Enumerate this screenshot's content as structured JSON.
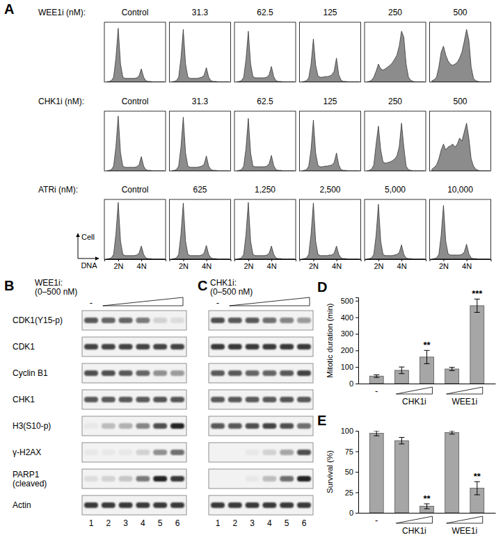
{
  "panel_a": {
    "label": "A",
    "x_label": "DNA",
    "y_label": "Cell",
    "xlim": [
      0.8,
      6.1
    ],
    "ylim": [
      0,
      100
    ],
    "xticks": [
      {
        "value": 2,
        "label": "2N"
      },
      {
        "value": 4,
        "label": "4N"
      }
    ],
    "x": [
      1,
      1.2,
      1.4,
      1.6,
      1.8,
      2,
      2.2,
      2.4,
      2.6,
      2.8,
      3,
      3.2,
      3.4,
      3.6,
      3.8,
      4,
      4.2,
      4.4,
      4.6,
      4.8,
      5,
      5.2,
      5.4,
      5.6,
      5.8,
      6
    ],
    "rows": [
      {
        "title": "WEE1i (nM):",
        "panels": [
          {
            "label": "Control",
            "values": [
              0,
              1,
              2,
              8,
              40,
              90,
              30,
              8,
              6,
              6,
              6,
              6,
              6,
              7,
              10,
              22,
              8,
              2,
              1,
              1,
              0,
              0,
              0,
              0,
              0,
              0
            ]
          },
          {
            "label": "31.3",
            "values": [
              0,
              1,
              2,
              8,
              40,
              88,
              30,
              8,
              6,
              6,
              6,
              6,
              7,
              8,
              11,
              24,
              8,
              2,
              1,
              1,
              0,
              0,
              0,
              0,
              0,
              0
            ]
          },
          {
            "label": "62.5",
            "values": [
              0,
              1,
              2,
              8,
              38,
              85,
              30,
              9,
              7,
              7,
              7,
              7,
              7,
              8,
              12,
              26,
              9,
              2,
              1,
              1,
              0,
              0,
              0,
              0,
              0,
              0
            ]
          },
          {
            "label": "125",
            "values": [
              0,
              1,
              2,
              7,
              30,
              72,
              28,
              10,
              8,
              8,
              9,
              9,
              10,
              12,
              18,
              40,
              12,
              3,
              1,
              1,
              0,
              0,
              0,
              0,
              0,
              0
            ]
          },
          {
            "label": "250",
            "values": [
              0,
              1,
              3,
              8,
              18,
              30,
              22,
              20,
              22,
              25,
              28,
              32,
              38,
              45,
              60,
              85,
              75,
              30,
              8,
              3,
              1,
              0,
              0,
              0,
              0,
              0
            ]
          },
          {
            "label": "500",
            "values": [
              2,
              4,
              8,
              25,
              50,
              60,
              45,
              35,
              30,
              28,
              30,
              33,
              40,
              50,
              68,
              88,
              70,
              25,
              6,
              2,
              1,
              0,
              0,
              0,
              0,
              0
            ]
          }
        ]
      },
      {
        "title": "CHK1i (nM):",
        "panels": [
          {
            "label": "Control",
            "values": [
              0,
              1,
              2,
              8,
              40,
              92,
              30,
              8,
              6,
              6,
              6,
              6,
              6,
              7,
              10,
              24,
              8,
              2,
              1,
              1,
              0,
              0,
              0,
              0,
              0,
              0
            ]
          },
          {
            "label": "31.3",
            "values": [
              0,
              1,
              2,
              8,
              40,
              90,
              30,
              8,
              6,
              6,
              6,
              6,
              7,
              8,
              11,
              25,
              8,
              2,
              1,
              1,
              0,
              0,
              0,
              0,
              0,
              0
            ]
          },
          {
            "label": "62.5",
            "values": [
              0,
              1,
              2,
              8,
              38,
              88,
              30,
              8,
              7,
              7,
              7,
              7,
              7,
              8,
              12,
              26,
              9,
              2,
              1,
              1,
              0,
              0,
              0,
              0,
              0,
              0
            ]
          },
          {
            "label": "125",
            "values": [
              0,
              1,
              2,
              8,
              36,
              85,
              30,
              9,
              7,
              7,
              8,
              8,
              9,
              10,
              14,
              30,
              10,
              2,
              1,
              1,
              0,
              0,
              0,
              0,
              0,
              0
            ]
          },
          {
            "label": "250",
            "values": [
              0,
              1,
              3,
              10,
              45,
              75,
              35,
              15,
              13,
              14,
              15,
              17,
              20,
              25,
              40,
              80,
              40,
              8,
              2,
              1,
              0,
              0,
              0,
              0,
              0,
              0
            ]
          },
          {
            "label": "500",
            "values": [
              3,
              6,
              10,
              20,
              35,
              45,
              35,
              40,
              42,
              45,
              40,
              45,
              55,
              50,
              65,
              80,
              55,
              20,
              8,
              3,
              1,
              0,
              0,
              0,
              0,
              0
            ]
          }
        ]
      },
      {
        "title": "ATRi (nM):",
        "panels": [
          {
            "label": "Control",
            "values": [
              0,
              1,
              2,
              8,
              42,
              95,
              30,
              8,
              6,
              6,
              6,
              6,
              6,
              7,
              10,
              22,
              8,
              2,
              1,
              1,
              0,
              0,
              0,
              0,
              0,
              0
            ]
          },
          {
            "label": "625",
            "values": [
              0,
              1,
              2,
              8,
              42,
              94,
              30,
              8,
              6,
              6,
              6,
              6,
              6,
              7,
              10,
              23,
              8,
              2,
              1,
              1,
              0,
              0,
              0,
              0,
              0,
              0
            ]
          },
          {
            "label": "1,250",
            "values": [
              0,
              1,
              2,
              8,
              42,
              95,
              30,
              8,
              6,
              6,
              6,
              6,
              6,
              7,
              10,
              22,
              8,
              2,
              1,
              1,
              0,
              0,
              0,
              0,
              0,
              0
            ]
          },
          {
            "label": "2,500",
            "values": [
              0,
              1,
              2,
              8,
              42,
              94,
              30,
              8,
              6,
              6,
              6,
              6,
              7,
              7,
              10,
              22,
              8,
              2,
              1,
              1,
              0,
              0,
              0,
              0,
              0,
              0
            ]
          },
          {
            "label": "5,000",
            "values": [
              0,
              1,
              2,
              8,
              40,
              92,
              30,
              8,
              6,
              6,
              6,
              6,
              7,
              8,
              11,
              24,
              8,
              2,
              1,
              1,
              0,
              0,
              0,
              0,
              0,
              0
            ]
          },
          {
            "label": "10,000",
            "values": [
              0,
              1,
              2,
              8,
              40,
              90,
              30,
              9,
              7,
              7,
              7,
              7,
              7,
              8,
              12,
              25,
              9,
              2,
              1,
              1,
              0,
              0,
              0,
              0,
              0,
              0
            ]
          }
        ]
      }
    ]
  },
  "blots": [
    {
      "label": "B",
      "treatment": "WEE1i:",
      "dose": "(0–500 nM)",
      "control_label": "-",
      "lanes": [
        "1",
        "2",
        "3",
        "4",
        "5",
        "6"
      ],
      "rows": [
        {
          "label": [
            "CDK1(Y15-p)"
          ],
          "intensity": [
            70,
            65,
            65,
            55,
            15,
            10
          ]
        },
        {
          "label": [
            "CDK1"
          ],
          "intensity": [
            80,
            80,
            80,
            80,
            80,
            80
          ]
        },
        {
          "label": [
            "Cyclin B1"
          ],
          "intensity": [
            75,
            75,
            70,
            65,
            45,
            40
          ]
        },
        {
          "label": [
            "CHK1"
          ],
          "intensity": [
            70,
            70,
            70,
            70,
            72,
            72
          ]
        },
        {
          "label": [
            "H3(S10-p)"
          ],
          "intensity": [
            5,
            25,
            30,
            50,
            75,
            95
          ]
        },
        {
          "label": [
            "γ-H2AX"
          ],
          "intensity": [
            5,
            5,
            5,
            15,
            45,
            60
          ]
        },
        {
          "label": [
            "PARP1",
            "(cleaved)"
          ],
          "intensity": [
            10,
            15,
            20,
            55,
            95,
            85
          ]
        },
        {
          "label": [
            "Actin"
          ],
          "intensity": [
            85,
            85,
            85,
            85,
            85,
            85
          ]
        }
      ]
    },
    {
      "label": "C",
      "treatment": "CHK1i:",
      "dose": "(0–500 nM)",
      "control_label": "-",
      "lanes": [
        "1",
        "2",
        "3",
        "4",
        "5",
        "6"
      ],
      "rows": [
        {
          "intensity": [
            75,
            70,
            70,
            60,
            50,
            40
          ]
        },
        {
          "intensity": [
            85,
            85,
            85,
            85,
            85,
            85
          ]
        },
        {
          "intensity": [
            70,
            70,
            65,
            65,
            70,
            80
          ]
        },
        {
          "intensity": [
            70,
            70,
            70,
            70,
            72,
            70
          ]
        },
        {
          "intensity": [
            70,
            70,
            75,
            80,
            75,
            60
          ]
        },
        {
          "intensity": [
            0,
            0,
            5,
            15,
            35,
            75
          ]
        },
        {
          "intensity": [
            0,
            0,
            5,
            25,
            60,
            95
          ]
        },
        {
          "intensity": [
            85,
            85,
            85,
            85,
            85,
            85
          ]
        }
      ]
    }
  ],
  "chart_data": [
    {
      "type": "bar",
      "panel": "D",
      "y_label": "Mitotic duration (min)",
      "categories": [
        "-",
        null,
        null,
        null,
        null
      ],
      "x_groups": [
        {
          "label": "CHK1i",
          "members": [
            1,
            2
          ]
        },
        {
          "label": "WEE1i",
          "members": [
            3,
            4
          ]
        }
      ],
      "values": [
        45,
        80,
        160,
        88,
        470
      ],
      "errors": [
        8,
        20,
        40,
        10,
        40
      ],
      "significance": [
        null,
        null,
        "**",
        null,
        "***"
      ],
      "ylim": [
        0,
        520
      ],
      "yticks": [
        0,
        100,
        200,
        300,
        400,
        500
      ],
      "color": "#a6a6a6"
    },
    {
      "type": "bar",
      "panel": "E",
      "y_label": "Survival (%)",
      "categories": [
        "-",
        null,
        null,
        null,
        null
      ],
      "x_groups": [
        {
          "label": "CHK1i",
          "members": [
            1,
            2
          ]
        },
        {
          "label": "WEE1i",
          "members": [
            3,
            4
          ]
        }
      ],
      "values": [
        97,
        88,
        8,
        98,
        30
      ],
      "errors": [
        3,
        4,
        3,
        2,
        8
      ],
      "significance": [
        null,
        null,
        "**",
        null,
        "**"
      ],
      "ylim": [
        0,
        100
      ],
      "yticks": [
        0,
        25,
        50,
        75,
        100
      ],
      "color": "#a6a6a6"
    }
  ]
}
